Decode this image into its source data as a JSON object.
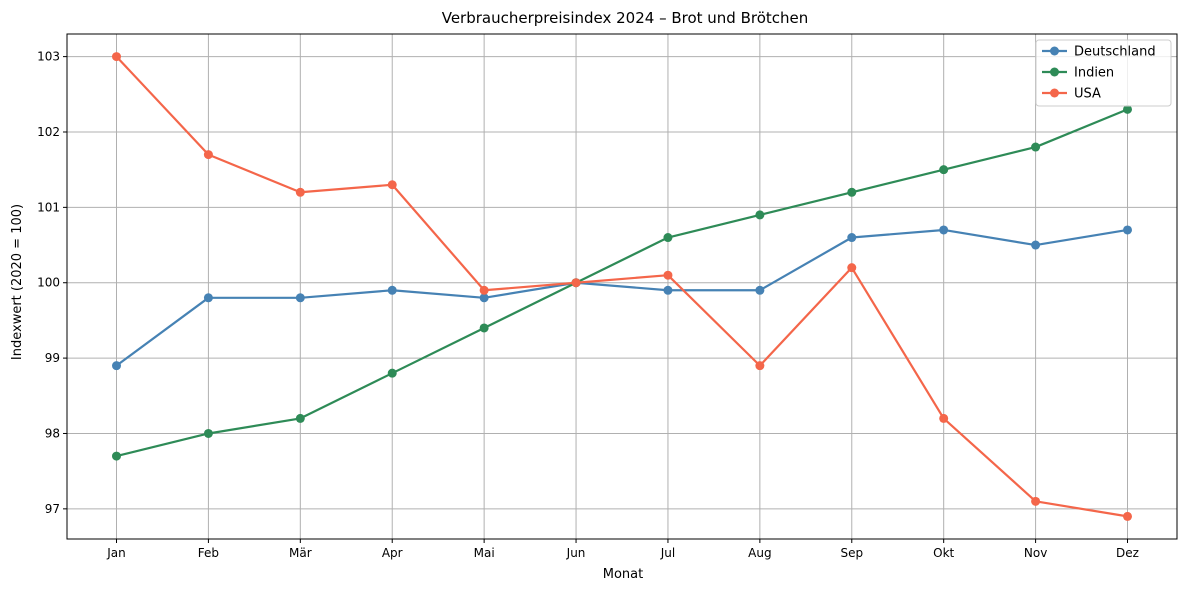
{
  "chart_data": {
    "type": "line",
    "title": "Verbraucherpreisindex 2024 – Brot und Brötchen",
    "xlabel": "Monat",
    "ylabel": "Indexwert (2020 = 100)",
    "categories": [
      "Jan",
      "Feb",
      "Mär",
      "Apr",
      "Mai",
      "Jun",
      "Jul",
      "Aug",
      "Sep",
      "Okt",
      "Nov",
      "Dez"
    ],
    "yticks": [
      97,
      98,
      99,
      100,
      101,
      102,
      103
    ],
    "ylim": [
      96.6,
      103.3
    ],
    "grid": true,
    "legend_position": "top-right",
    "series": [
      {
        "name": "Deutschland",
        "color": "#4682b4",
        "values": [
          98.9,
          99.8,
          99.8,
          99.9,
          99.8,
          100.0,
          99.9,
          99.9,
          100.6,
          100.7,
          100.5,
          100.7
        ]
      },
      {
        "name": "Indien",
        "color": "#2e8b57",
        "values": [
          97.7,
          98.0,
          98.2,
          98.8,
          99.4,
          100.0,
          100.6,
          100.9,
          101.2,
          101.5,
          101.8,
          102.3
        ]
      },
      {
        "name": "USA",
        "color": "#f4664a",
        "values": [
          103.0,
          101.7,
          101.2,
          101.3,
          99.9,
          100.0,
          100.1,
          98.9,
          100.2,
          98.2,
          97.1,
          96.9
        ]
      }
    ]
  }
}
